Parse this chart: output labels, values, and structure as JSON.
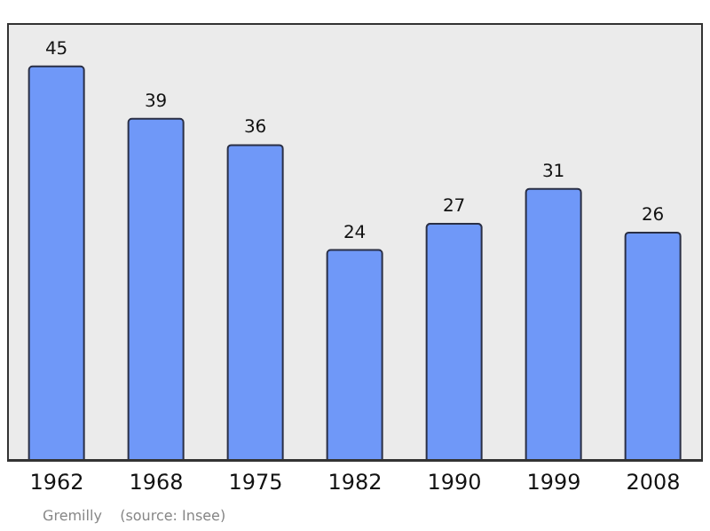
{
  "chart_data": {
    "type": "bar",
    "categories": [
      "1962",
      "1968",
      "1975",
      "1982",
      "1990",
      "1999",
      "2008"
    ],
    "values": [
      45,
      39,
      36,
      24,
      27,
      31,
      26
    ],
    "color": "#6f98f8",
    "data_labels": true,
    "annotations": [
      "Gremilly    (source: Insee)"
    ]
  }
}
